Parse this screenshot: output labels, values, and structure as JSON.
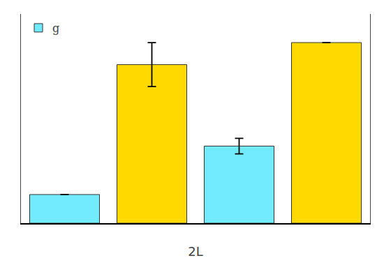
{
  "chart_data": {
    "type": "bar",
    "xlabel": "2L",
    "categories": [
      null,
      null,
      null,
      null
    ],
    "series": [
      {
        "name": "g",
        "color": "#73ebff",
        "values": [
          0.13,
          null,
          0.35,
          null
        ],
        "errors": [
          null,
          null,
          0.035,
          null
        ]
      },
      {
        "color": "#ffd900",
        "values": [
          null,
          0.72,
          null,
          0.82
        ],
        "errors": [
          null,
          0.1,
          null,
          null
        ]
      }
    ],
    "ylim": [
      0,
      0.95
    ],
    "yticks": [],
    "tick_labels": false,
    "grid": false,
    "legend": "upper left"
  }
}
